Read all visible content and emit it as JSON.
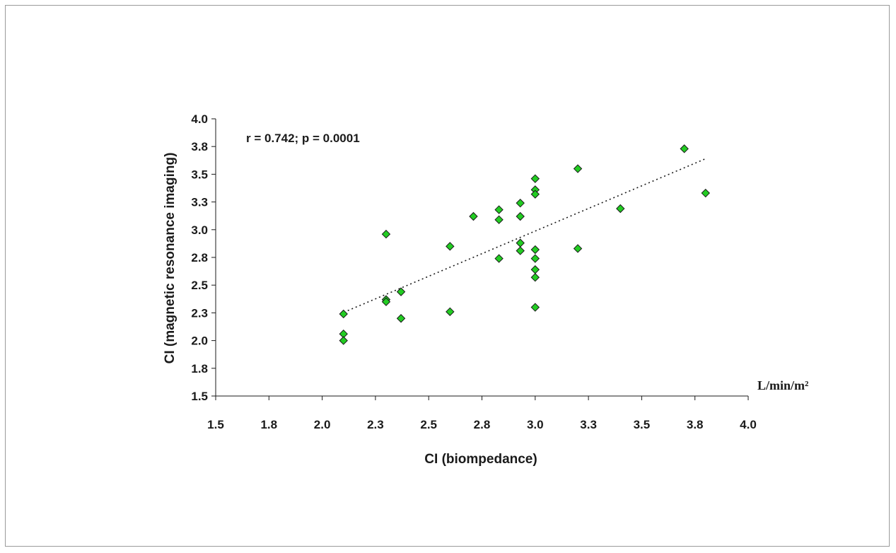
{
  "chart_data": {
    "type": "scatter",
    "xlabel": "CI (biompedance)",
    "ylabel": "CI (magnetic resonance imaging)",
    "unit_label": "L/min/m²",
    "annotation": "r = 0.742; p = 0.0001",
    "xlim": [
      1.5,
      4.0
    ],
    "ylim": [
      1.5,
      4.0
    ],
    "x_ticks": [
      1.5,
      1.75,
      2.0,
      2.25,
      2.5,
      2.75,
      3.0,
      3.25,
      3.5,
      3.75,
      4.0
    ],
    "x_tick_labels": [
      "1.5",
      "1.8",
      "2.0",
      "2.3",
      "2.5",
      "2.8",
      "3.0",
      "3.3",
      "3.5",
      "3.8",
      "4.0"
    ],
    "y_ticks": [
      1.5,
      1.75,
      2.0,
      2.25,
      2.5,
      2.75,
      3.0,
      3.25,
      3.5,
      3.75,
      4.0
    ],
    "y_tick_labels": [
      "1.5",
      "1.8",
      "2.0",
      "2.3",
      "2.5",
      "2.8",
      "3.0",
      "3.3",
      "3.5",
      "3.8",
      "4.0"
    ],
    "grid": false,
    "marker": "diamond",
    "marker_color": "#22cc22",
    "points": [
      {
        "x": 2.1,
        "y": 2.24
      },
      {
        "x": 2.1,
        "y": 2.06
      },
      {
        "x": 2.1,
        "y": 2.0
      },
      {
        "x": 2.3,
        "y": 2.96
      },
      {
        "x": 2.3,
        "y": 2.37
      },
      {
        "x": 2.3,
        "y": 2.35
      },
      {
        "x": 2.37,
        "y": 2.44
      },
      {
        "x": 2.37,
        "y": 2.2
      },
      {
        "x": 2.6,
        "y": 2.85
      },
      {
        "x": 2.6,
        "y": 2.26
      },
      {
        "x": 2.71,
        "y": 3.12
      },
      {
        "x": 2.83,
        "y": 3.18
      },
      {
        "x": 2.83,
        "y": 3.09
      },
      {
        "x": 2.83,
        "y": 2.74
      },
      {
        "x": 2.93,
        "y": 3.24
      },
      {
        "x": 2.93,
        "y": 3.12
      },
      {
        "x": 2.93,
        "y": 2.88
      },
      {
        "x": 2.93,
        "y": 2.81
      },
      {
        "x": 3.0,
        "y": 3.46
      },
      {
        "x": 3.0,
        "y": 3.36
      },
      {
        "x": 3.0,
        "y": 3.32
      },
      {
        "x": 3.0,
        "y": 2.82
      },
      {
        "x": 3.0,
        "y": 2.74
      },
      {
        "x": 3.0,
        "y": 2.64
      },
      {
        "x": 3.0,
        "y": 2.57
      },
      {
        "x": 3.0,
        "y": 2.3
      },
      {
        "x": 3.2,
        "y": 3.55
      },
      {
        "x": 3.2,
        "y": 2.83
      },
      {
        "x": 3.4,
        "y": 3.19
      },
      {
        "x": 3.7,
        "y": 3.73
      },
      {
        "x": 3.8,
        "y": 3.33
      }
    ],
    "trendline": {
      "x": [
        2.12,
        3.8
      ],
      "y": [
        2.27,
        3.64
      ],
      "style": "dotted"
    }
  }
}
